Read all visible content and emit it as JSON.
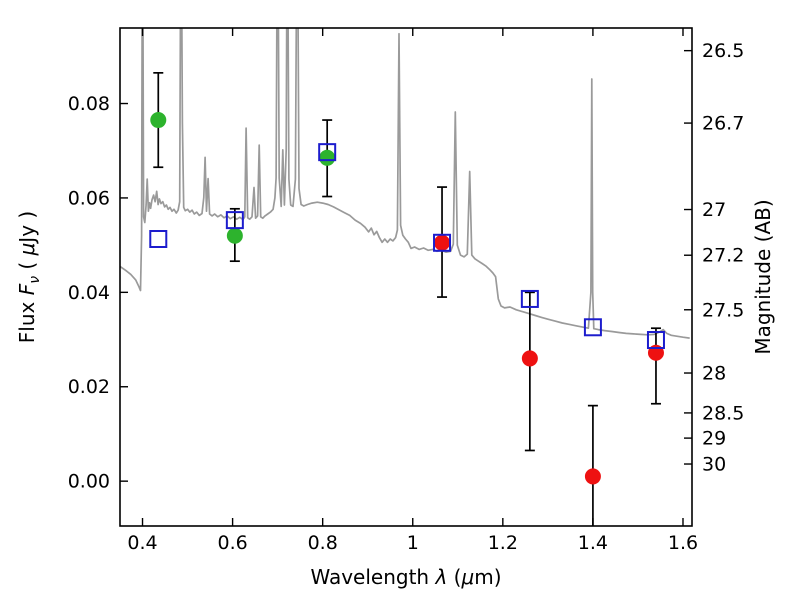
{
  "figure": {
    "background": "#ffffff"
  },
  "chart_data": {
    "type": "scatter",
    "title": "",
    "xlabel": "Wavelength λ (μm)",
    "xlabel_parts": [
      {
        "t": "Wavelength  ",
        "style": "normal"
      },
      {
        "t": "λ",
        "style": "italic"
      },
      {
        "t": "  (",
        "style": "normal"
      },
      {
        "t": "μ",
        "style": "italic"
      },
      {
        "t": "m)",
        "style": "normal"
      }
    ],
    "ylabel_left": "Flux Fν ( μJy )",
    "ylabel_left_parts": [
      {
        "t": "Flux  ",
        "style": "normal"
      },
      {
        "t": "F",
        "style": "italic"
      },
      {
        "t": "ν",
        "style": "italic-sub"
      },
      {
        "t": "  ( ",
        "style": "normal"
      },
      {
        "t": "μ",
        "style": "italic"
      },
      {
        "t": "Jy )",
        "style": "normal"
      }
    ],
    "ylabel_right": "Magnitude (AB)",
    "ylabel_right_parts": [
      {
        "t": "Magnitude (AB)",
        "style": "normal"
      }
    ],
    "xlim": [
      0.35,
      1.62
    ],
    "ylim_flux": [
      -0.0095,
      0.096
    ],
    "grid": false,
    "legend": "none",
    "x_ticks": [
      0.4,
      0.6,
      0.8,
      1.0,
      1.2,
      1.4,
      1.6
    ],
    "x_tick_labels": [
      "0.4",
      "0.6",
      "0.8",
      "1",
      "1.2",
      "1.4",
      "1.6"
    ],
    "y_ticks_flux": [
      0.0,
      0.02,
      0.04,
      0.06,
      0.08
    ],
    "y_tick_labels_flux": [
      "0.00",
      "0.02",
      "0.04",
      "0.06",
      "0.08"
    ],
    "y_ticks_mag": [
      26.5,
      26.7,
      27,
      27.2,
      27.5,
      28,
      28.5,
      29,
      30
    ],
    "y_tick_labels_mag": [
      "26.5",
      "26.7",
      "27",
      "27.2",
      "27.5",
      "28",
      "28.5",
      "29",
      "30"
    ],
    "ab_zeropoint_uJy": 23.9,
    "colors": {
      "spectrum": "#9a9a9a",
      "model_photometry": "#1c1ccd",
      "optical_detections": "#2db32d",
      "nir_detections": "#ee1111",
      "errorbars": "#000000"
    },
    "series": [
      {
        "name": "model-spectrum",
        "kind": "line",
        "color": "#9a9a9a",
        "linewidth": 1.7,
        "points": [
          [
            0.35,
            0.0455
          ],
          [
            0.362,
            0.0447
          ],
          [
            0.374,
            0.0438
          ],
          [
            0.385,
            0.0426
          ],
          [
            0.392,
            0.0412
          ],
          [
            0.3955,
            0.0404
          ],
          [
            0.398,
            0.052
          ],
          [
            0.4,
            0.13
          ],
          [
            0.4025,
            0.056
          ],
          [
            0.405,
            0.0548
          ],
          [
            0.408,
            0.0585
          ],
          [
            0.4105,
            0.064
          ],
          [
            0.413,
            0.0572
          ],
          [
            0.4155,
            0.059
          ],
          [
            0.418,
            0.0578
          ],
          [
            0.421,
            0.0596
          ],
          [
            0.4245,
            0.0606
          ],
          [
            0.428,
            0.0592
          ],
          [
            0.4315,
            0.0614
          ],
          [
            0.4345,
            0.0586
          ],
          [
            0.4375,
            0.0598
          ],
          [
            0.441,
            0.0588
          ],
          [
            0.445,
            0.0592
          ],
          [
            0.449,
            0.0581
          ],
          [
            0.453,
            0.0585
          ],
          [
            0.457,
            0.0576
          ],
          [
            0.461,
            0.058
          ],
          [
            0.4655,
            0.0572
          ],
          [
            0.47,
            0.0576
          ],
          [
            0.475,
            0.0568
          ],
          [
            0.479,
            0.0574
          ],
          [
            0.4825,
            0.0592
          ],
          [
            0.4855,
            0.13
          ],
          [
            0.4885,
            0.0758
          ],
          [
            0.4915,
            0.058
          ],
          [
            0.495,
            0.0573
          ],
          [
            0.5,
            0.0576
          ],
          [
            0.505,
            0.057
          ],
          [
            0.51,
            0.0574
          ],
          [
            0.515,
            0.0566
          ],
          [
            0.52,
            0.057
          ],
          [
            0.526,
            0.0563
          ],
          [
            0.532,
            0.0567
          ],
          [
            0.536,
            0.0601
          ],
          [
            0.539,
            0.0686
          ],
          [
            0.542,
            0.0572
          ],
          [
            0.5455,
            0.0641
          ],
          [
            0.549,
            0.0566
          ],
          [
            0.5545,
            0.0562
          ],
          [
            0.56,
            0.0566
          ],
          [
            0.567,
            0.056
          ],
          [
            0.574,
            0.0564
          ],
          [
            0.581,
            0.0558
          ],
          [
            0.588,
            0.0562
          ],
          [
            0.595,
            0.0556
          ],
          [
            0.602,
            0.056
          ],
          [
            0.609,
            0.0555
          ],
          [
            0.616,
            0.0559
          ],
          [
            0.623,
            0.0554
          ],
          [
            0.627,
            0.056
          ],
          [
            0.63,
            0.0748
          ],
          [
            0.6335,
            0.0558
          ],
          [
            0.638,
            0.0555
          ],
          [
            0.643,
            0.056
          ],
          [
            0.6475,
            0.0622
          ],
          [
            0.651,
            0.0557
          ],
          [
            0.6555,
            0.0562
          ],
          [
            0.659,
            0.0712
          ],
          [
            0.6625,
            0.056
          ],
          [
            0.667,
            0.0557
          ],
          [
            0.672,
            0.0562
          ],
          [
            0.678,
            0.0566
          ],
          [
            0.684,
            0.057
          ],
          [
            0.69,
            0.0576
          ],
          [
            0.694,
            0.06
          ],
          [
            0.6965,
            0.0642
          ],
          [
            0.7,
            0.13
          ],
          [
            0.7035,
            0.0642
          ],
          [
            0.708,
            0.0582
          ],
          [
            0.7115,
            0.0702
          ],
          [
            0.715,
            0.0585
          ],
          [
            0.719,
            0.0702
          ],
          [
            0.7215,
            0.13
          ],
          [
            0.725,
            0.064
          ],
          [
            0.729,
            0.0585
          ],
          [
            0.734,
            0.0582
          ],
          [
            0.7395,
            0.064
          ],
          [
            0.7435,
            0.13
          ],
          [
            0.7475,
            0.062
          ],
          [
            0.752,
            0.0586
          ],
          [
            0.758,
            0.0583
          ],
          [
            0.766,
            0.0586
          ],
          [
            0.776,
            0.0589
          ],
          [
            0.788,
            0.0591
          ],
          [
            0.8,
            0.0589
          ],
          [
            0.812,
            0.0586
          ],
          [
            0.824,
            0.0581
          ],
          [
            0.836,
            0.0575
          ],
          [
            0.848,
            0.0569
          ],
          [
            0.86,
            0.0563
          ],
          [
            0.872,
            0.0553
          ],
          [
            0.884,
            0.0546
          ],
          [
            0.894,
            0.0538
          ],
          [
            0.902,
            0.0528
          ],
          [
            0.908,
            0.0536
          ],
          [
            0.914,
            0.0522
          ],
          [
            0.92,
            0.0529
          ],
          [
            0.926,
            0.0516
          ],
          [
            0.932,
            0.0506
          ],
          [
            0.938,
            0.0513
          ],
          [
            0.944,
            0.0506
          ],
          [
            0.95,
            0.0513
          ],
          [
            0.956,
            0.0509
          ],
          [
            0.962,
            0.0516
          ],
          [
            0.966,
            0.0532
          ],
          [
            0.9695,
            0.0948
          ],
          [
            0.973,
            0.0542
          ],
          [
            0.978,
            0.0521
          ],
          [
            0.984,
            0.0513
          ],
          [
            0.99,
            0.0506
          ],
          [
            0.996,
            0.0493
          ],
          [
            1.004,
            0.0496
          ],
          [
            1.014,
            0.0491
          ],
          [
            1.024,
            0.0494
          ],
          [
            1.034,
            0.0489
          ],
          [
            1.044,
            0.0491
          ],
          [
            1.054,
            0.0487
          ],
          [
            1.064,
            0.0489
          ],
          [
            1.074,
            0.0485
          ],
          [
            1.084,
            0.0487
          ],
          [
            1.09,
            0.0502
          ],
          [
            1.0945,
            0.0782
          ],
          [
            1.099,
            0.05
          ],
          [
            1.106,
            0.0479
          ],
          [
            1.114,
            0.0475
          ],
          [
            1.121,
            0.0481
          ],
          [
            1.1265,
            0.0656
          ],
          [
            1.131,
            0.0479
          ],
          [
            1.138,
            0.0471
          ],
          [
            1.146,
            0.0466
          ],
          [
            1.154,
            0.0461
          ],
          [
            1.162,
            0.0456
          ],
          [
            1.17,
            0.0449
          ],
          [
            1.178,
            0.0441
          ],
          [
            1.184,
            0.0433
          ],
          [
            1.19,
            0.0386
          ],
          [
            1.196,
            0.0371
          ],
          [
            1.204,
            0.0367
          ],
          [
            1.216,
            0.0369
          ],
          [
            1.23,
            0.0363
          ],
          [
            1.244,
            0.0359
          ],
          [
            1.258,
            0.0355
          ],
          [
            1.272,
            0.0351
          ],
          [
            1.286,
            0.0347
          ],
          [
            1.3,
            0.0343
          ],
          [
            1.316,
            0.0339
          ],
          [
            1.332,
            0.0335
          ],
          [
            1.348,
            0.0332
          ],
          [
            1.364,
            0.0329
          ],
          [
            1.38,
            0.0326
          ],
          [
            1.39,
            0.0324
          ],
          [
            1.3955,
            0.04
          ],
          [
            1.3975,
            0.0852
          ],
          [
            1.3995,
            0.04
          ],
          [
            1.402,
            0.0323
          ],
          [
            1.412,
            0.0321
          ],
          [
            1.426,
            0.0319
          ],
          [
            1.442,
            0.0317
          ],
          [
            1.458,
            0.0315
          ],
          [
            1.474,
            0.0313
          ],
          [
            1.49,
            0.0312
          ],
          [
            1.506,
            0.0311
          ],
          [
            1.522,
            0.031
          ],
          [
            1.536,
            0.0311
          ],
          [
            1.548,
            0.0316
          ],
          [
            1.556,
            0.0321
          ],
          [
            1.564,
            0.0313
          ],
          [
            1.574,
            0.0309
          ],
          [
            1.586,
            0.0307
          ],
          [
            1.6,
            0.0305
          ],
          [
            1.615,
            0.0303
          ]
        ]
      },
      {
        "name": "model-photometry",
        "kind": "scatter",
        "marker": "square-open",
        "color": "#1c1ccd",
        "x": [
          0.435,
          0.605,
          0.81,
          1.065,
          1.26,
          1.4,
          1.54
        ],
        "y": [
          0.0513,
          0.0553,
          0.0697,
          0.0505,
          0.0386,
          0.0326,
          0.0299
        ]
      },
      {
        "name": "observed-optical",
        "kind": "scatter",
        "marker": "circle",
        "color": "#2db32d",
        "x": [
          0.435,
          0.605,
          0.81
        ],
        "y": [
          0.0765,
          0.052,
          0.0685
        ],
        "yerr_hi": [
          0.01,
          0.0057,
          0.008
        ],
        "yerr_lo": [
          0.01,
          0.0054,
          0.0082
        ]
      },
      {
        "name": "observed-nir",
        "kind": "scatter",
        "marker": "circle",
        "color": "#ee1111",
        "x": [
          1.065,
          1.26,
          1.4,
          1.54
        ],
        "y": [
          0.0505,
          0.026,
          0.001,
          0.0272
        ],
        "yerr_hi": [
          0.0118,
          0.014,
          0.015,
          0.0052
        ],
        "yerr_lo": [
          0.0115,
          0.0195,
          0.017,
          0.0108
        ]
      }
    ]
  }
}
